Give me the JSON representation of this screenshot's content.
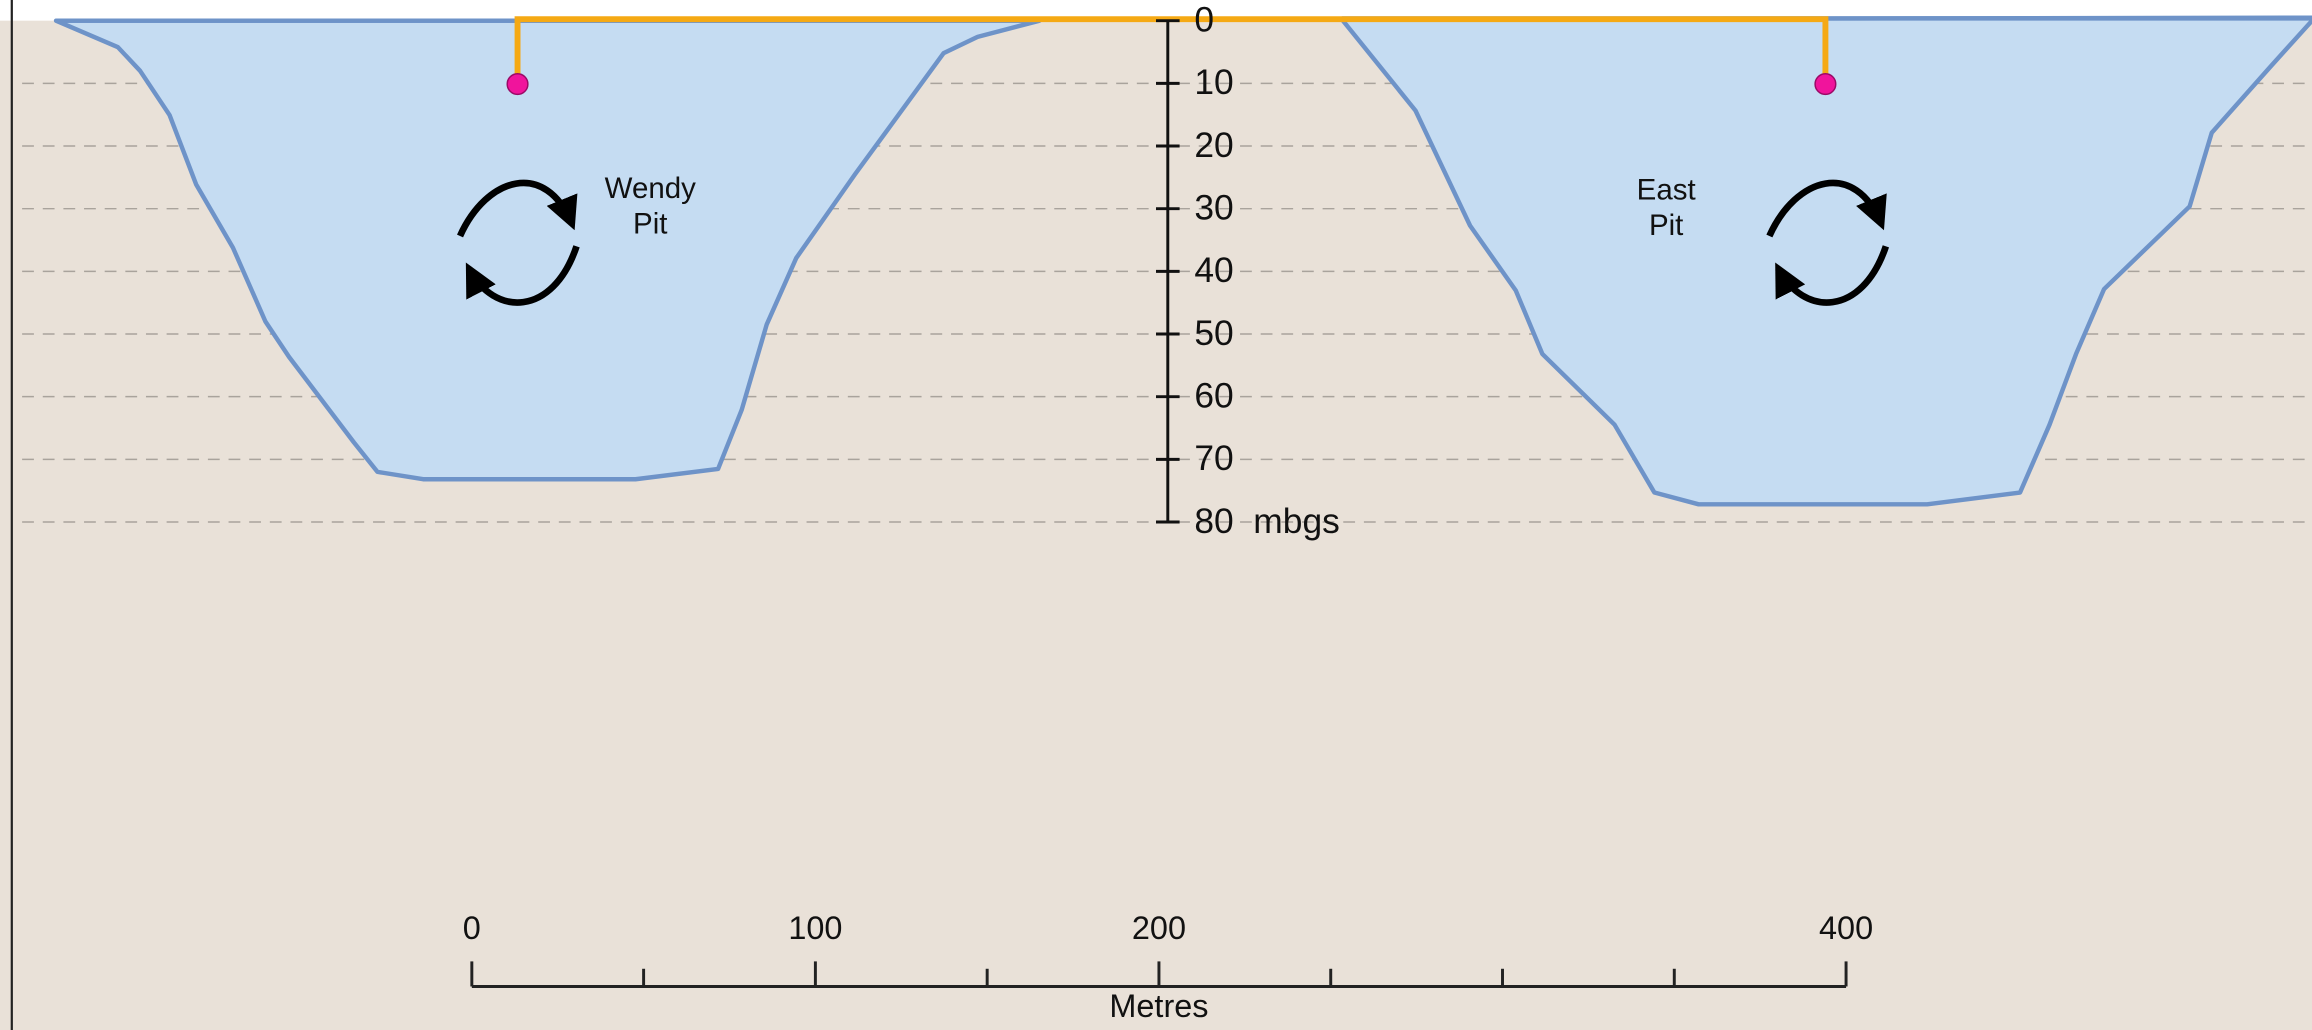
{
  "depth_axis": {
    "ticks": [
      0,
      10,
      20,
      30,
      40,
      50,
      60,
      70,
      80
    ],
    "unit": "mbgs"
  },
  "pits": [
    {
      "label": [
        "Wendy",
        "Pit"
      ]
    },
    {
      "label": [
        "East",
        "Pit"
      ]
    }
  ],
  "scale_bar": {
    "ticks": [
      0,
      100,
      200,
      400
    ],
    "unit": "Metres"
  }
}
